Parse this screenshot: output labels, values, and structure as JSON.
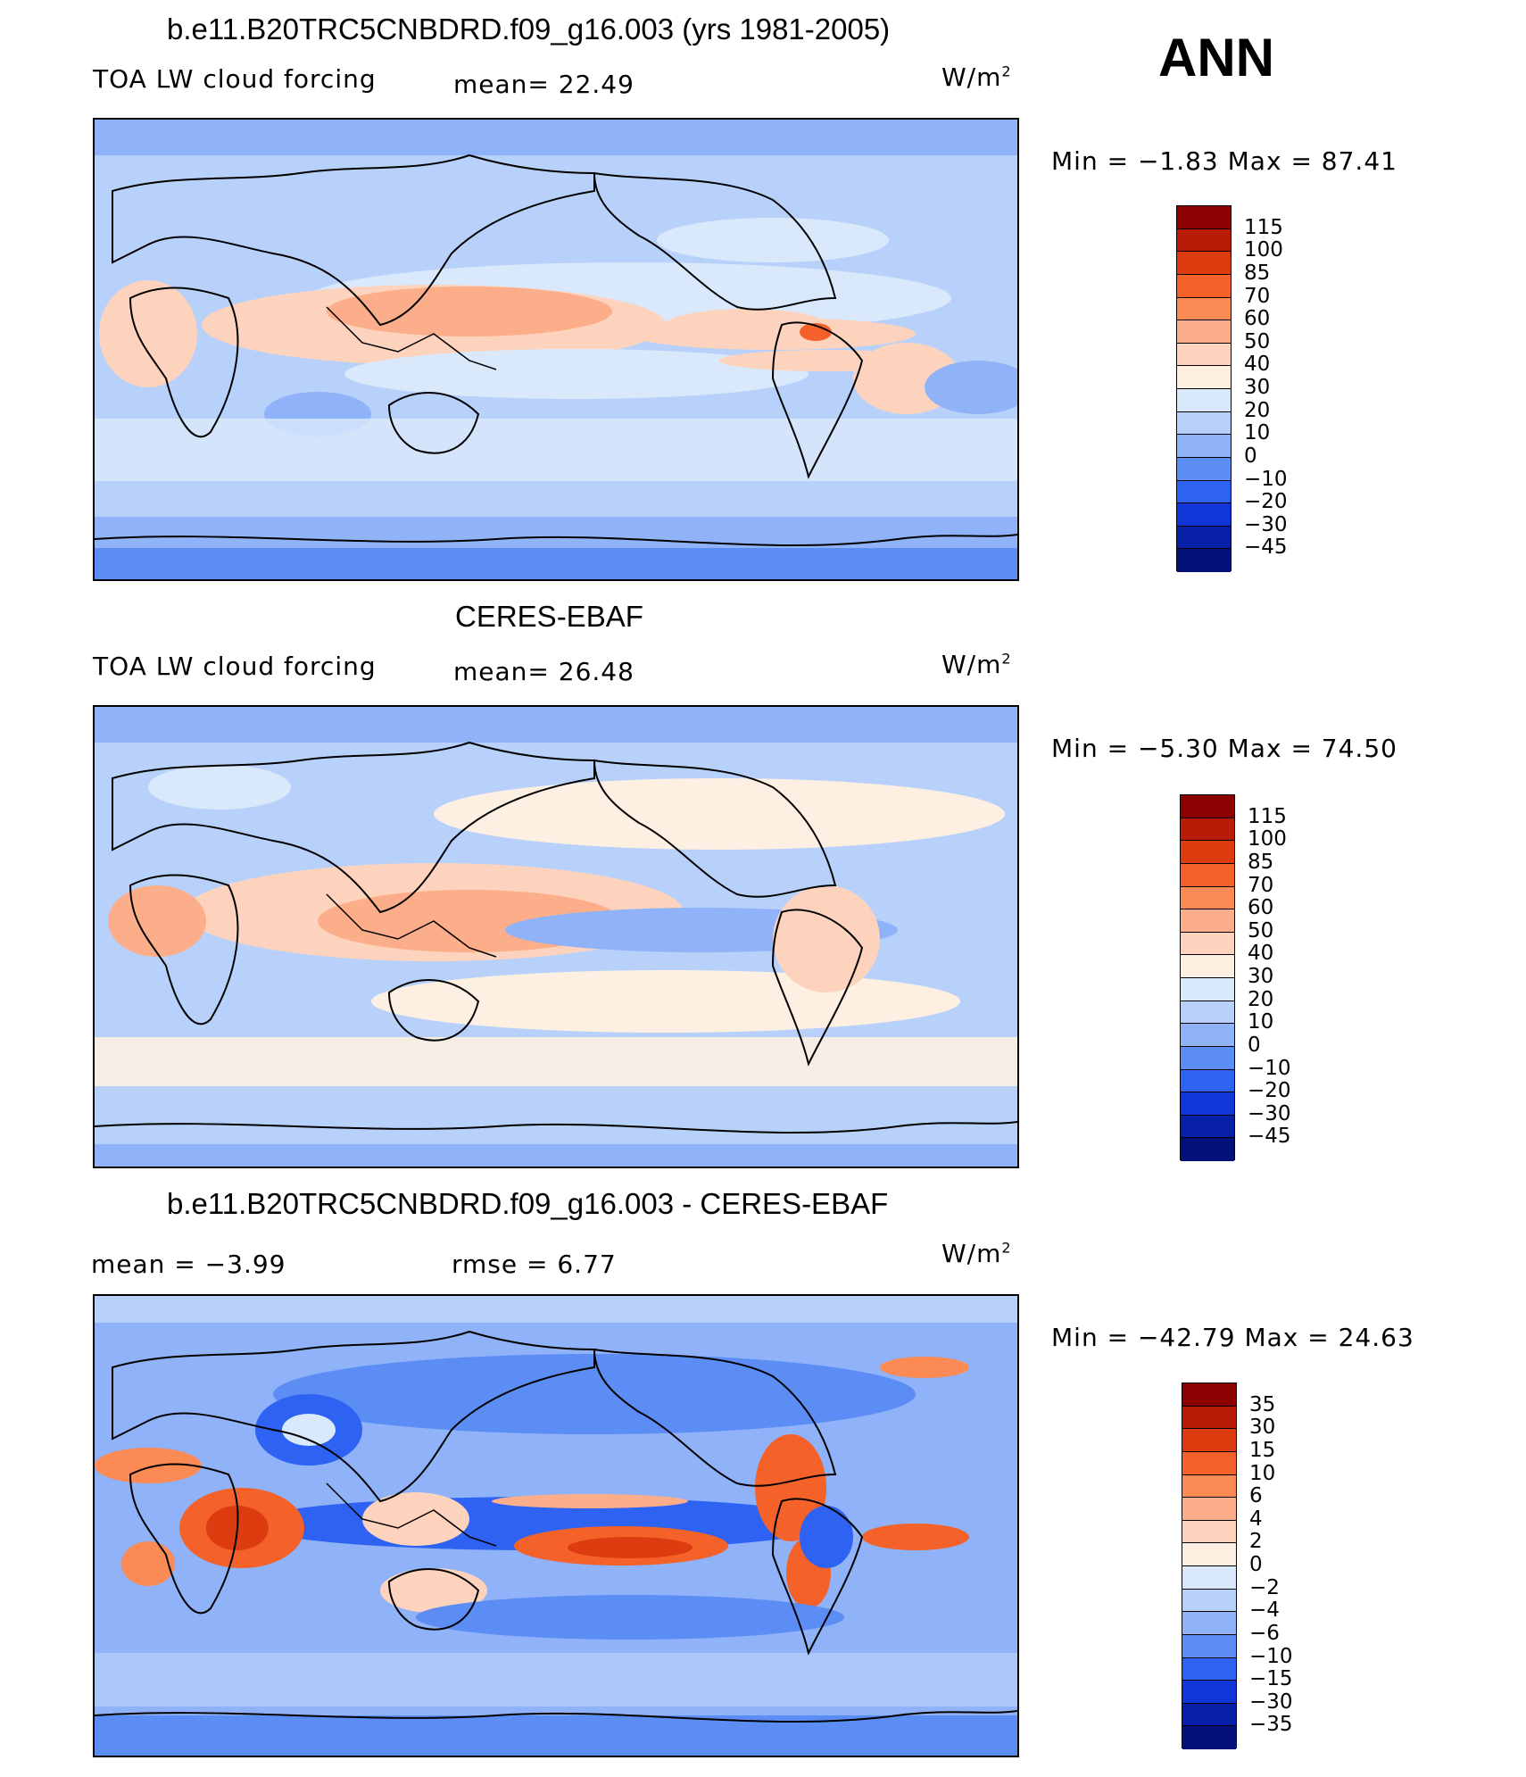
{
  "season": "ANN",
  "panels": [
    {
      "title": "b.e11.B20TRC5CNBDRD.f09_g16.003 (yrs 1981-2005)",
      "left_label": "TOA LW cloud forcing",
      "mid_label": "mean=  22.49",
      "units": "W/m",
      "units_sup": "2",
      "minmax": "Min =  −1.83 Max =  87.41",
      "colorbar": {
        "labels": [
          "115",
          "100",
          "85",
          "70",
          "60",
          "50",
          "40",
          "30",
          "20",
          "10",
          "0",
          "−10",
          "−20",
          "−30",
          "−45"
        ],
        "colors": [
          "#8b0000",
          "#b81c06",
          "#dc3c10",
          "#f4622a",
          "#fb8a55",
          "#fcae8a",
          "#fdd3bd",
          "#fdf0e2",
          "#d9e9fb",
          "#b8d1fa",
          "#8fb2f8",
          "#5b8df5",
          "#2d62f2",
          "#1036d8",
          "#0820a8",
          "#03107a"
        ]
      }
    },
    {
      "title": "CERES-EBAF",
      "left_label": "TOA LW cloud forcing",
      "mid_label": "mean=  26.48",
      "units": "W/m",
      "units_sup": "2",
      "minmax": "Min =  −5.30 Max =  74.50",
      "colorbar": {
        "labels": [
          "115",
          "100",
          "85",
          "70",
          "60",
          "50",
          "40",
          "30",
          "20",
          "10",
          "0",
          "−10",
          "−20",
          "−30",
          "−45"
        ],
        "colors": [
          "#8b0000",
          "#b81c06",
          "#dc3c10",
          "#f4622a",
          "#fb8a55",
          "#fcae8a",
          "#fdd3bd",
          "#fdf0e2",
          "#d9e9fb",
          "#b8d1fa",
          "#8fb2f8",
          "#5b8df5",
          "#2d62f2",
          "#1036d8",
          "#0820a8",
          "#03107a"
        ]
      }
    },
    {
      "title": "b.e11.B20TRC5CNBDRD.f09_g16.003 - CERES-EBAF",
      "left_label": "mean =   −3.99",
      "mid_label": "rmse =   6.77",
      "units": "W/m",
      "units_sup": "2",
      "minmax": "Min = −42.79 Max =  24.63",
      "colorbar": {
        "labels": [
          "35",
          "30",
          "15",
          "10",
          "6",
          "4",
          "2",
          "0",
          "−2",
          "−4",
          "−6",
          "−10",
          "−15",
          "−30",
          "−35"
        ],
        "colors": [
          "#8b0000",
          "#b81c06",
          "#dc3c10",
          "#f4622a",
          "#fb8a55",
          "#fcae8a",
          "#fdd3bd",
          "#fdf0e2",
          "#d9e9fb",
          "#b8d1fa",
          "#8fb2f8",
          "#5b8df5",
          "#2d62f2",
          "#1036d8",
          "#0820a8",
          "#03107a"
        ]
      }
    }
  ]
}
